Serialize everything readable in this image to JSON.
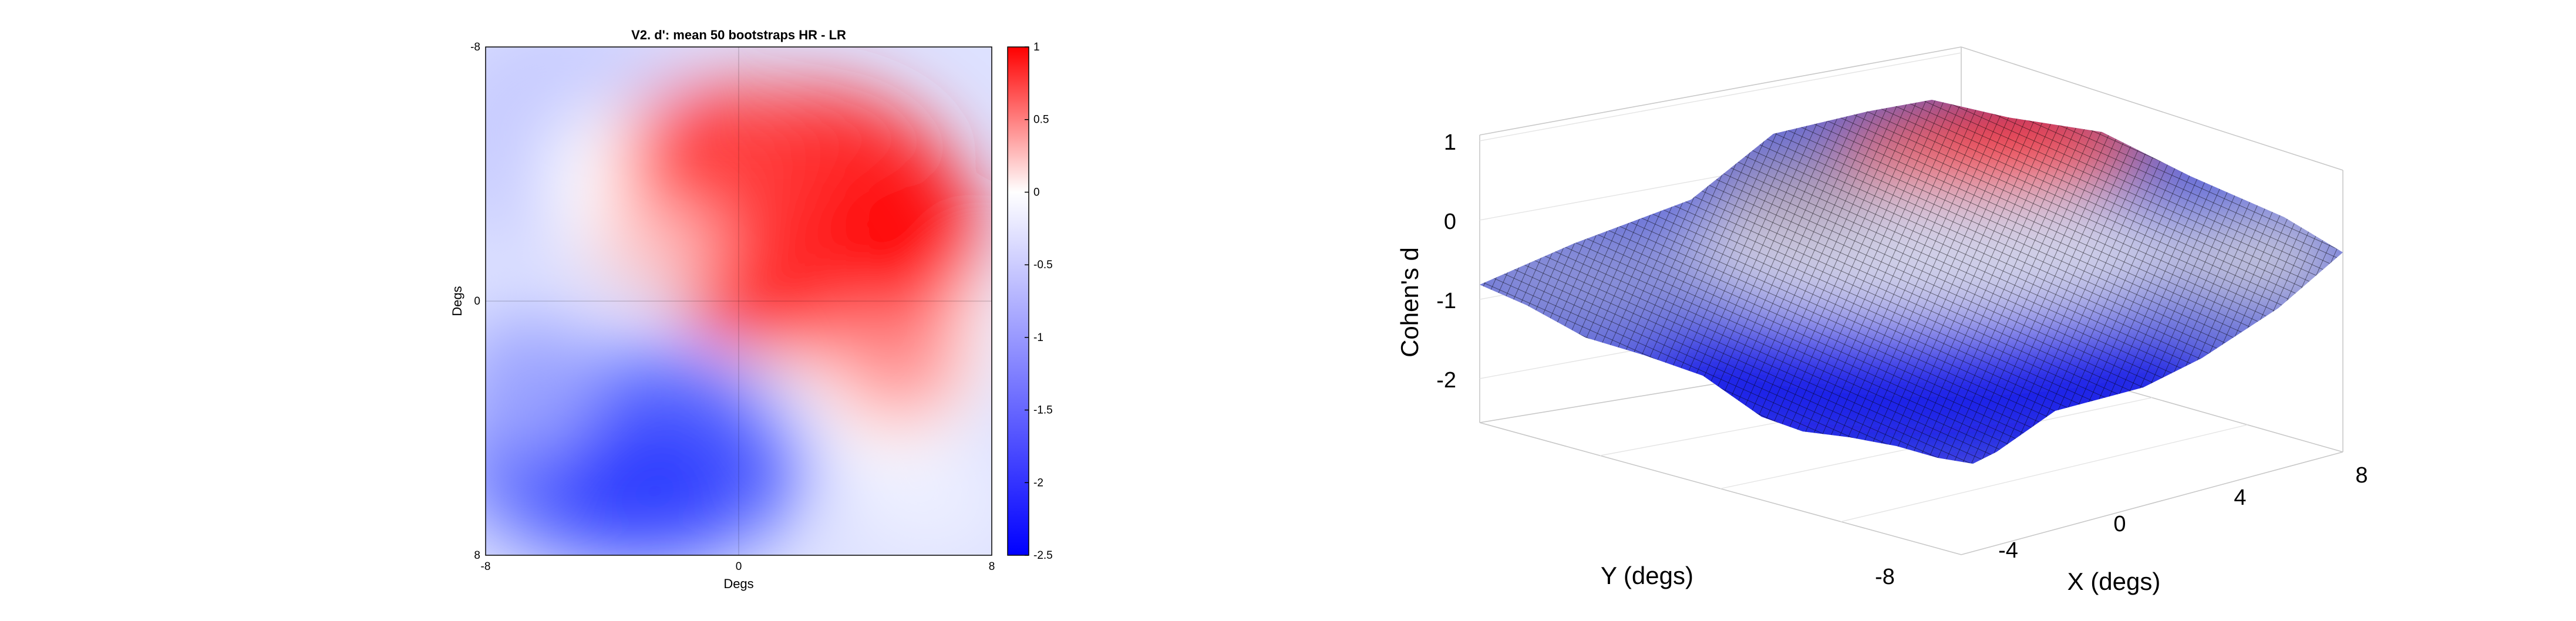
{
  "chart_data": [
    {
      "type": "heatmap",
      "title": "V2. d': mean 50 bootstraps HR - LR",
      "xlabel": "Degs",
      "ylabel": "Degs",
      "xlim": [
        -8,
        8
      ],
      "ylim": [
        -8,
        8
      ],
      "y_axis_direction": "top-to-bottom",
      "x_ticks": [
        "-8",
        "0",
        "8"
      ],
      "y_ticks": [
        "-8",
        "0",
        "8"
      ],
      "grid": "crosshair at 0,0",
      "colorbar": {
        "range": [
          -2.5,
          1
        ],
        "ticks": [
          "1",
          "0.5",
          "0",
          "-0.5",
          "-1",
          "-1.5",
          "-2",
          "-2.5"
        ],
        "colormap": [
          "#0000ff",
          "#ffffff",
          "#ff0000"
        ]
      },
      "features": [
        {
          "kind": "max",
          "x": 4.8,
          "y": -2.1,
          "value": 1.0
        },
        {
          "kind": "min",
          "x": -2.5,
          "y": 5.8,
          "value": -2.5
        }
      ]
    },
    {
      "type": "surface",
      "zlabel": "Cohen's d",
      "xlabel": "X (degs)",
      "ylabel": "Y (degs)",
      "z_ticks": [
        "1",
        "0",
        "-1",
        "-2"
      ],
      "zlim": [
        -2.5,
        1
      ],
      "x_ticks": [
        "-8",
        "-4",
        "0",
        "4",
        "8"
      ],
      "xlim": [
        -8,
        8
      ],
      "ylim": [
        -8,
        8
      ],
      "grid": true,
      "colormap": [
        "#0000ff",
        "#ffffff",
        "#ff0000"
      ],
      "edge_color": "#000000"
    }
  ]
}
